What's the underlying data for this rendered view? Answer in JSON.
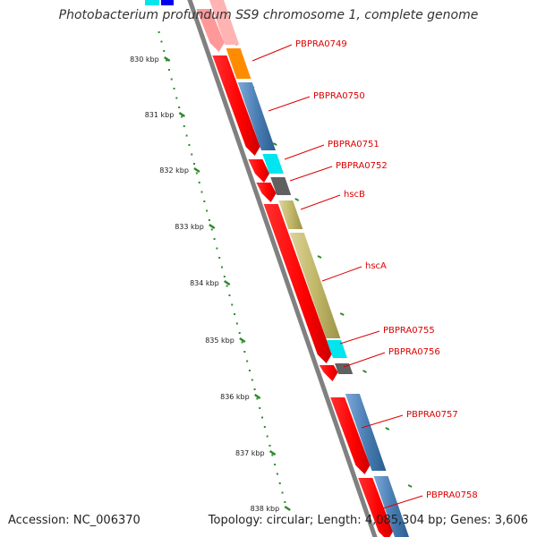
{
  "title": "Photobacterium profundum SS9 chromosome 1, complete genome",
  "footer": {
    "accession_label": "Accession:",
    "accession": "NC_006370",
    "topology_label": "Topology:",
    "topology": "circular",
    "length_label": "Length:",
    "length": "4,085,304 bp",
    "genes_label": "Genes:",
    "genes": "3,606"
  },
  "ticks": [
    {
      "label": "830 kbp"
    },
    {
      "label": "831 kbp"
    },
    {
      "label": "832 kbp"
    },
    {
      "label": "833 kbp"
    },
    {
      "label": "834 kbp"
    },
    {
      "label": "835 kbp"
    },
    {
      "label": "836 kbp"
    },
    {
      "label": "837 kbp"
    },
    {
      "label": "838 kbp"
    }
  ],
  "genes": [
    {
      "label": "PBPRA0749",
      "color": "#ff8c00"
    },
    {
      "label": "PBPRA0750",
      "color": "#4a7fb5"
    },
    {
      "label": "PBPRA0751",
      "color": "#00e5ee"
    },
    {
      "label": "PBPRA0752",
      "color": "#606060"
    },
    {
      "label": "hscB",
      "color": "#c2b86a"
    },
    {
      "label": "hscA",
      "color": "#c2b86a"
    },
    {
      "label": "PBPRA0755",
      "color": "#00e5ee"
    },
    {
      "label": "PBPRA0756",
      "color": "#606060"
    },
    {
      "label": "PBPRA0757",
      "color": "#4a7fb5"
    },
    {
      "label": "PBPRA0758",
      "color": "#4a7fb5"
    }
  ],
  "colors": {
    "backbone": "#808080",
    "orf_arrow": "#ff0000",
    "label_line": "#dd0000",
    "tick_mark": "#2e8b2e",
    "faded_top": "#ff9999"
  }
}
